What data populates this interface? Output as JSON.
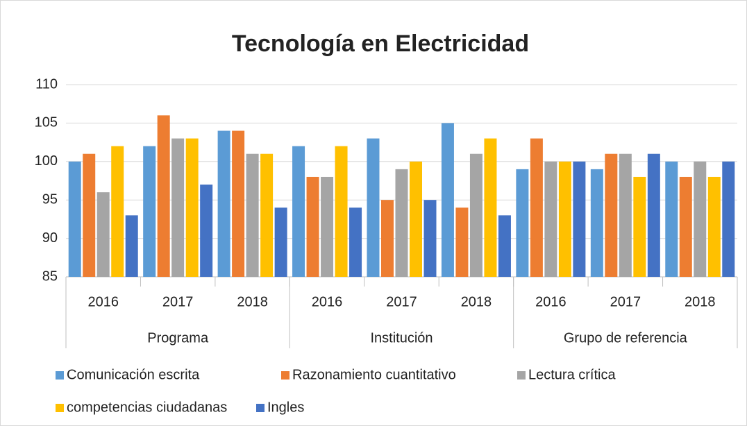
{
  "chart_data": {
    "type": "bar",
    "title": "Tecnología en Electricidad",
    "categories": [
      "2016",
      "2017",
      "2018",
      "2016",
      "2017",
      "2018",
      "2016",
      "2017",
      "2018"
    ],
    "category_groups": [
      "Programa",
      "Institución",
      "Grupo de referencia"
    ],
    "series": [
      {
        "name": "Comunicación escrita",
        "color": "#5b9bd5",
        "values": [
          100,
          102,
          104,
          102,
          103,
          105,
          99,
          99,
          100
        ]
      },
      {
        "name": "Razonamiento cuantitativo",
        "color": "#ed7d31",
        "values": [
          101,
          106,
          104,
          98,
          95,
          94,
          103,
          101,
          98
        ]
      },
      {
        "name": "Lectura crítica",
        "color": "#a5a5a5",
        "values": [
          96,
          103,
          101,
          98,
          99,
          101,
          100,
          101,
          100
        ]
      },
      {
        "name": "competencias ciudadanas",
        "color": "#ffc000",
        "values": [
          102,
          103,
          101,
          102,
          100,
          103,
          100,
          98,
          98
        ]
      },
      {
        "name": "Ingles",
        "color": "#4472c4",
        "values": [
          93,
          97,
          94,
          94,
          95,
          93,
          100,
          101,
          100
        ]
      }
    ],
    "ylim": [
      85,
      110
    ],
    "yticks": [
      85,
      90,
      95,
      100,
      105,
      110
    ],
    "grid": true,
    "legend": "bottom"
  }
}
